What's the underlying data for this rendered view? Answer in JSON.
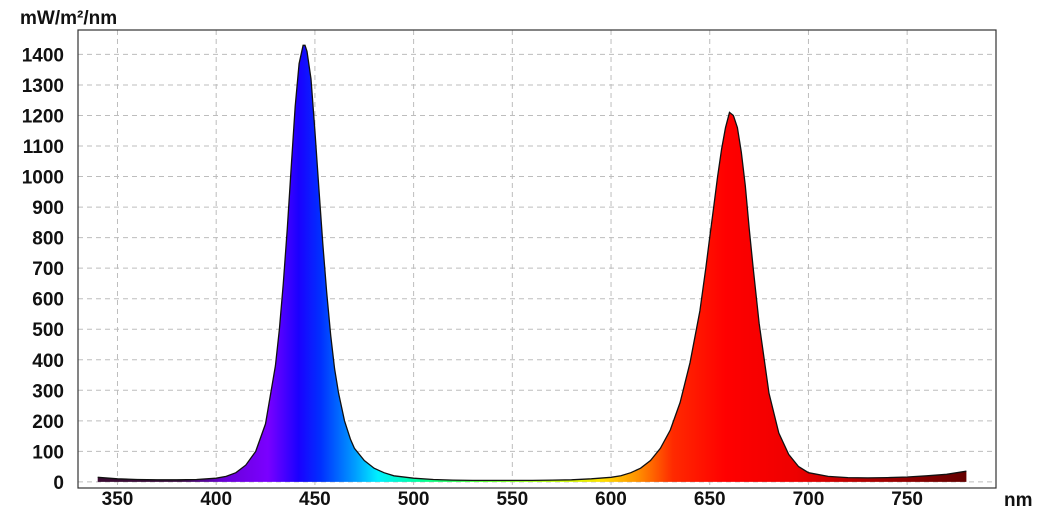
{
  "chart_data": {
    "type": "area",
    "title": "",
    "xlabel": "nm",
    "ylabel": "mW/m²/nm",
    "xlim": [
      330,
      795
    ],
    "ylim": [
      -20,
      1480
    ],
    "x_ticks": [
      350,
      400,
      450,
      500,
      550,
      600,
      650,
      700,
      750
    ],
    "y_ticks": [
      0,
      100,
      200,
      300,
      400,
      500,
      600,
      700,
      800,
      900,
      1000,
      1100,
      1200,
      1300,
      1400
    ],
    "grid": true,
    "legend": "none",
    "series": [
      {
        "x": [
          340,
          350,
          360,
          370,
          380,
          390,
          400,
          405,
          410,
          415,
          420,
          425,
          430,
          432,
          434,
          436,
          438,
          440,
          442,
          444,
          445,
          446,
          448,
          450,
          452,
          454,
          456,
          458,
          460,
          462,
          465,
          468,
          470,
          475,
          480,
          485,
          490,
          500,
          510,
          520,
          530,
          540,
          550,
          560,
          570,
          580,
          590,
          600,
          605,
          610,
          615,
          620,
          625,
          630,
          635,
          640,
          645,
          648,
          650,
          652,
          654,
          656,
          658,
          660,
          662,
          664,
          666,
          668,
          670,
          672,
          675,
          680,
          685,
          690,
          695,
          700,
          710,
          720,
          730,
          740,
          750,
          760,
          770,
          780
        ],
        "y": [
          15,
          10,
          8,
          7,
          7,
          8,
          12,
          18,
          30,
          55,
          100,
          190,
          380,
          500,
          650,
          830,
          1030,
          1230,
          1370,
          1430,
          1430,
          1410,
          1320,
          1150,
          960,
          780,
          620,
          480,
          370,
          290,
          200,
          140,
          110,
          70,
          45,
          30,
          20,
          12,
          8,
          6,
          5,
          5,
          5,
          5,
          6,
          7,
          10,
          15,
          20,
          30,
          45,
          70,
          110,
          170,
          260,
          390,
          560,
          700,
          800,
          900,
          1000,
          1090,
          1160,
          1210,
          1200,
          1160,
          1080,
          970,
          830,
          700,
          520,
          290,
          160,
          90,
          50,
          30,
          18,
          14,
          13,
          14,
          16,
          20,
          25,
          35
        ]
      }
    ]
  }
}
